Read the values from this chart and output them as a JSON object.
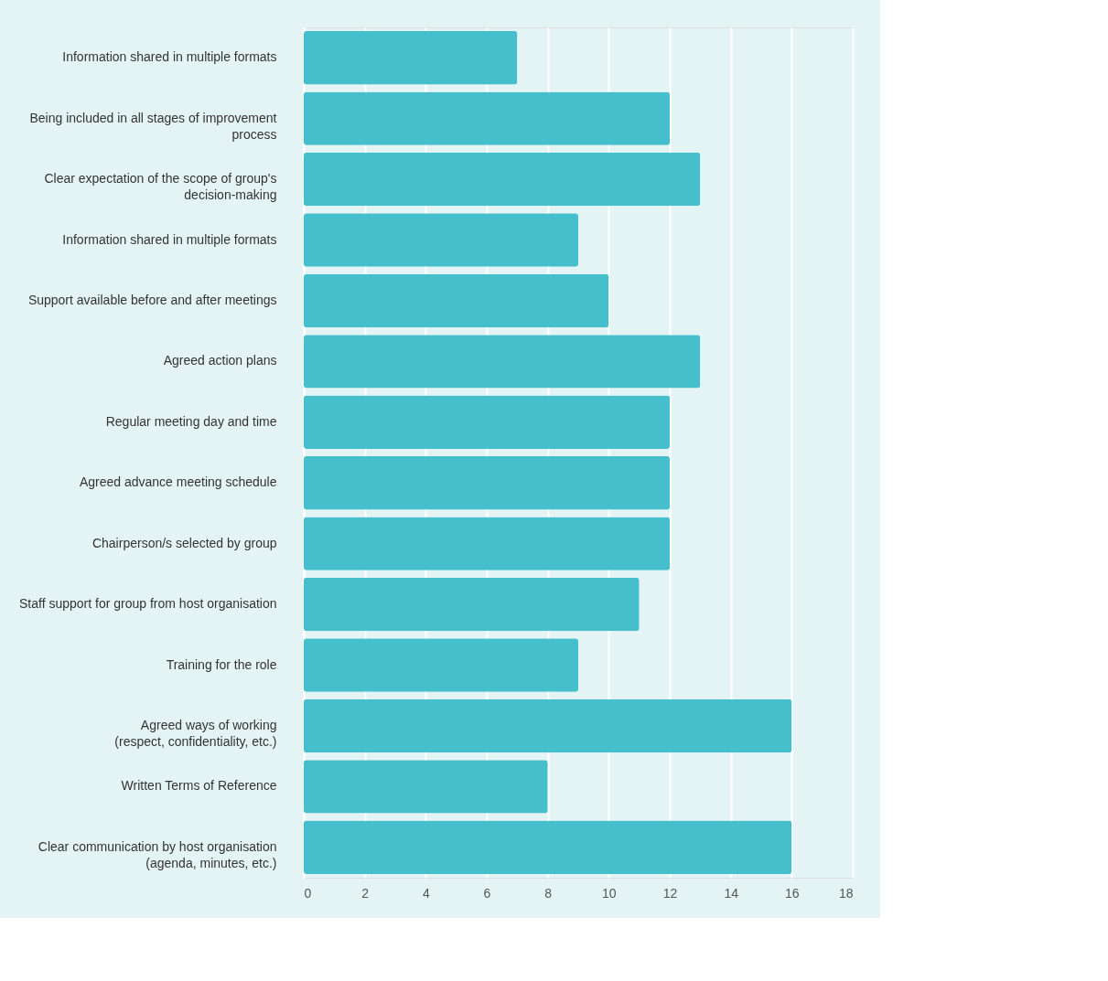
{
  "chart_data": {
    "type": "bar",
    "orientation": "horizontal",
    "categories": [
      "Information shared in multiple formats",
      "Being included in all stages of improvement\nprocess",
      "Clear expectation of the scope of group's\ndecision-making",
      "Information shared in multiple formats",
      "Support available before and after meetings",
      "Agreed action plans",
      "Regular meeting day and time",
      "Agreed advance meeting schedule",
      "Chairperson/s selected by group",
      "Staff support for group from host organisation",
      "Training for the role",
      "Agreed ways of working\n(respect, confidentiality, etc.)",
      "Written Terms of Reference",
      "Clear  communication by host organisation\n(agenda, minutes, etc.)"
    ],
    "values": [
      7,
      12,
      13,
      9,
      10,
      13,
      12,
      12,
      12,
      11,
      9,
      16,
      8,
      16
    ],
    "color": "#45bfcc",
    "xlim": [
      0,
      18
    ],
    "xticks": [
      0,
      2,
      4,
      6,
      8,
      10,
      12,
      14,
      16,
      18
    ],
    "grid": "x"
  }
}
